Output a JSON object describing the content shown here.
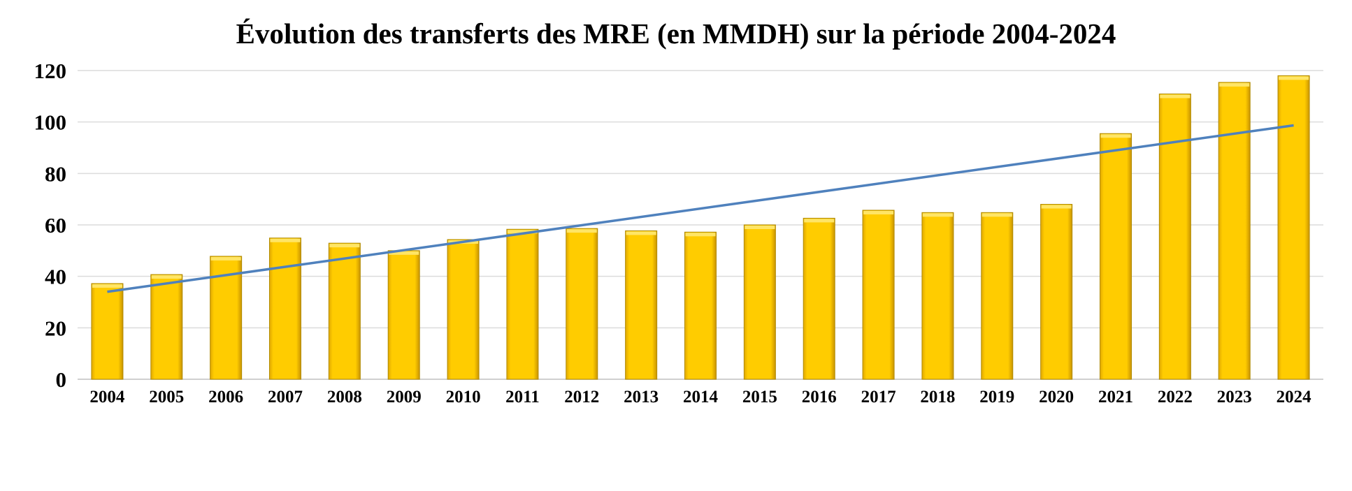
{
  "chart_data": {
    "type": "bar",
    "title": "Évolution des transferts des MRE (en MMDH) sur la période 2004-2024",
    "xlabel": "",
    "ylabel": "",
    "ylim": [
      0,
      120
    ],
    "yticks": [
      0,
      20,
      40,
      60,
      80,
      100,
      120
    ],
    "grid": true,
    "legend": "none",
    "categories": [
      "2004",
      "2005",
      "2006",
      "2007",
      "2008",
      "2009",
      "2010",
      "2011",
      "2012",
      "2013",
      "2014",
      "2015",
      "2016",
      "2017",
      "2018",
      "2019",
      "2020",
      "2021",
      "2022",
      "2023",
      "2024"
    ],
    "series": [
      {
        "type": "bar",
        "color": "#FFCC00",
        "values": [
          37.2,
          40.7,
          47.8,
          54.9,
          52.9,
          50.0,
          54.3,
          58.3,
          58.6,
          57.7,
          57.2,
          60.0,
          62.6,
          65.7,
          64.8,
          64.8,
          68.0,
          95.5,
          110.9,
          115.4,
          118.0
        ]
      },
      {
        "type": "linear-trendline",
        "color": "#4F81BD",
        "start": 34.0,
        "end": 98.7
      }
    ]
  }
}
